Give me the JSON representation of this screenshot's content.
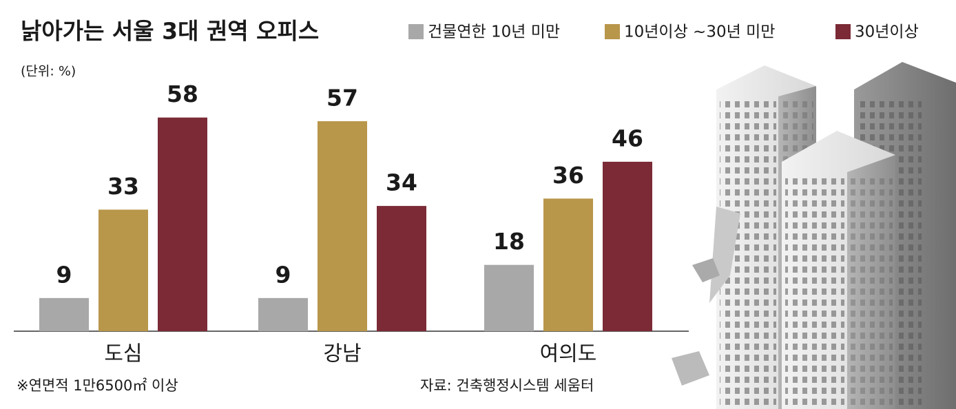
{
  "chart_data": {
    "type": "bar",
    "title": "낡아가는 서울 3대 권역 오피스",
    "subtitle": "(단위: %)",
    "categories": [
      "도심",
      "강남",
      "여의도"
    ],
    "series": [
      {
        "name": "건물연한 10년 미만",
        "color": "#a8a8a8",
        "values": [
          9,
          9,
          18
        ]
      },
      {
        "name": "10년이상 ~30년 미만",
        "color": "#b8964a",
        "values": [
          33,
          57,
          36
        ]
      },
      {
        "name": "30년이상",
        "color": "#7b2a36",
        "values": [
          58,
          34,
          46
        ]
      }
    ],
    "annotations": [
      "※연면적 1만6500㎡ 이상",
      "자료: 건축행정시스템 세움터"
    ]
  }
}
